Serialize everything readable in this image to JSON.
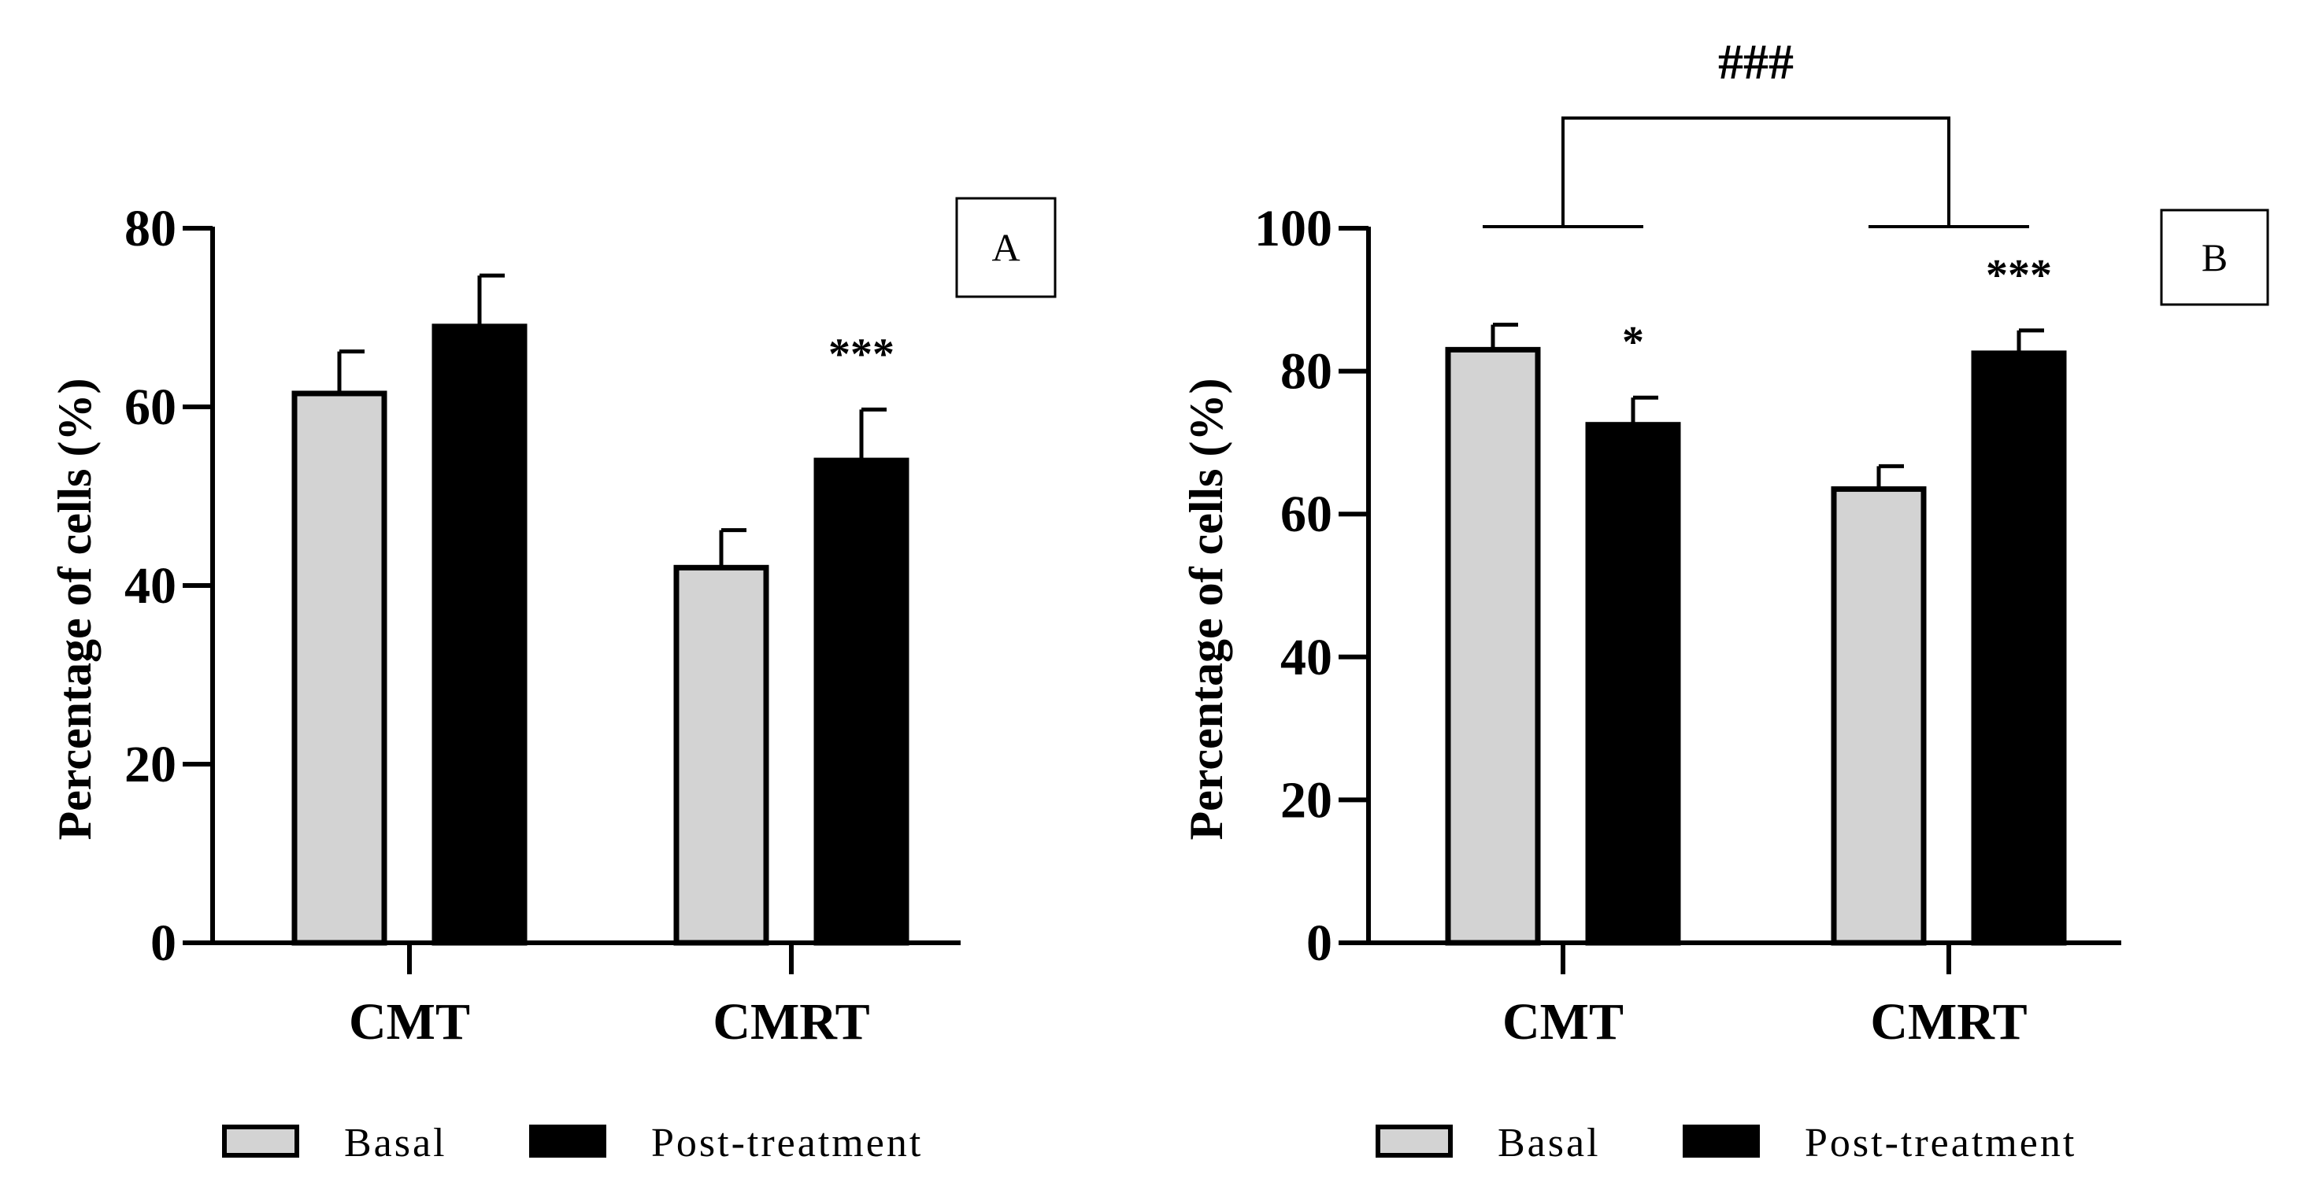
{
  "colors": {
    "basal": "#d3d3d3",
    "post": "#000000",
    "axis": "#000000",
    "background": "#ffffff"
  },
  "chart_data": [
    {
      "type": "bar",
      "panel_label": "A",
      "categories": [
        "CMT",
        "CMRT"
      ],
      "series": [
        {
          "name": "Basal",
          "values": [
            61.5,
            42
          ],
          "errors": [
            4.7,
            4.2
          ]
        },
        {
          "name": "Post-treatment",
          "values": [
            69,
            54
          ],
          "errors": [
            5.7,
            5.7
          ]
        }
      ],
      "ylabel": "Percentage of cells (%)",
      "ylim": [
        0,
        80
      ],
      "yticks": [
        "0",
        "20",
        "40",
        "60",
        "80"
      ],
      "ytick_values": [
        0,
        20,
        40,
        60,
        80
      ],
      "significance": [
        {
          "category": "CMRT",
          "series": "Post-treatment",
          "label": "***"
        }
      ],
      "legend": [
        "Basal",
        "Post-treatment"
      ],
      "legend_position": "bottom"
    },
    {
      "type": "bar",
      "panel_label": "B",
      "categories": [
        "CMT",
        "CMRT"
      ],
      "series": [
        {
          "name": "Basal",
          "values": [
            83,
            63.5
          ],
          "errors": [
            3.5,
            3.2
          ]
        },
        {
          "name": "Post-treatment",
          "values": [
            72.5,
            82.5
          ],
          "errors": [
            3.8,
            3.2
          ]
        }
      ],
      "ylabel": "Percentage of cells (%)",
      "ylim": [
        0,
        100
      ],
      "yticks": [
        "0",
        "20",
        "40",
        "60",
        "80",
        "100"
      ],
      "ytick_values": [
        0,
        20,
        40,
        60,
        80,
        100
      ],
      "significance": [
        {
          "category": "CMT",
          "series": "Post-treatment",
          "label": "*"
        },
        {
          "category": "CMRT",
          "series": "Post-treatment",
          "label": "***"
        }
      ],
      "group_comparison": {
        "label": "###",
        "between": [
          "CMT",
          "CMRT"
        ]
      },
      "legend": [
        "Basal",
        "Post-treatment"
      ],
      "legend_position": "bottom"
    }
  ]
}
